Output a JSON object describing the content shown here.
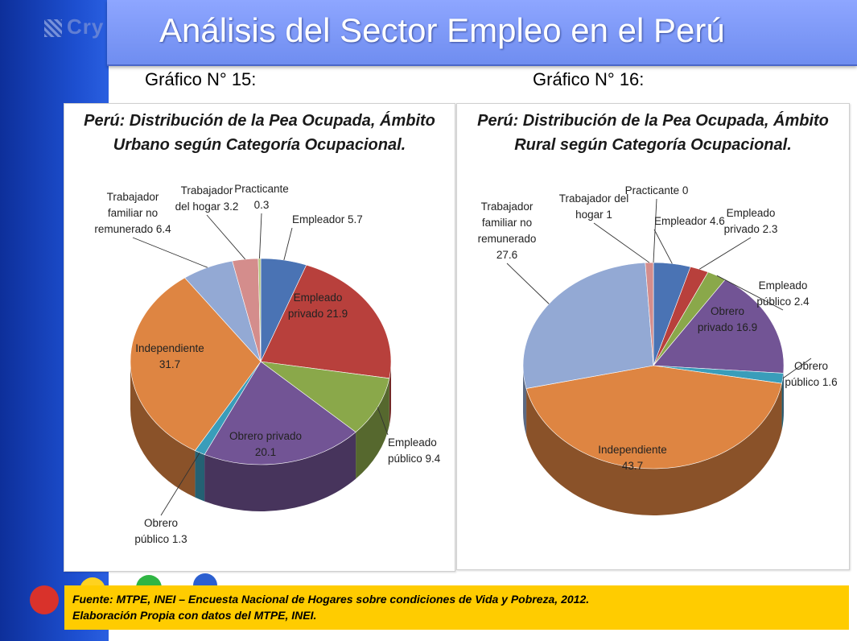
{
  "header": {
    "title": "Análisis del Sector Empleo en el Perú",
    "logo_text": "Cry"
  },
  "chart_labels": {
    "left": "Gráfico N° 15:",
    "right": "Gráfico N° 16:"
  },
  "footer": {
    "line1": "Fuente: MTPE, INEI – Encuesta Nacional de Hogares sobre condiciones de Vida y Pobreza, 2012.",
    "line2": "Elaboración Propia con datos del MTPE, INEI."
  },
  "colors": {
    "empleador": "#4a73b4",
    "empleado_privado": "#b8403c",
    "empleado_publico": "#8aa84a",
    "obrero_privado": "#725495",
    "obrero_publico": "#3a9dba",
    "independiente": "#de8542",
    "trabajador_familiar": "#93a9d4",
    "trabajador_hogar": "#d48d8c",
    "practicante": "#b1c57c"
  },
  "chart_data": [
    {
      "type": "pie",
      "title_line1": "Perú: Distribución de la Pea Ocupada, Ámbito",
      "title_line2": "Urbano según Categoría Ocupacional.",
      "slices": [
        {
          "key": "empleador",
          "label": [
            "Empleador 5.7"
          ],
          "value": 5.7
        },
        {
          "key": "empleado_privado",
          "label": [
            "Empleado",
            "privado 21.9"
          ],
          "value": 21.9
        },
        {
          "key": "empleado_publico",
          "label": [
            "Empleado",
            "público 9.4"
          ],
          "value": 9.4
        },
        {
          "key": "obrero_privado",
          "label": [
            "Obrero privado",
            "20.1"
          ],
          "value": 20.1
        },
        {
          "key": "obrero_publico",
          "label": [
            "Obrero",
            "público 1.3"
          ],
          "value": 1.3
        },
        {
          "key": "independiente",
          "label": [
            "Independiente",
            "31.7"
          ],
          "value": 31.7
        },
        {
          "key": "trabajador_familiar",
          "label": [
            "Trabajador",
            "familiar no",
            "remunerado 6.4"
          ],
          "value": 6.4
        },
        {
          "key": "trabajador_hogar",
          "label": [
            "Trabajador",
            "del hogar 3.2"
          ],
          "value": 3.2
        },
        {
          "key": "practicante",
          "label": [
            "Practicante",
            "0.3"
          ],
          "value": 0.3
        }
      ]
    },
    {
      "type": "pie",
      "title_line1": "Perú: Distribución de la Pea Ocupada, Ámbito",
      "title_line2": "Rural según Categoría Ocupacional.",
      "slices": [
        {
          "key": "empleador",
          "label": [
            "Empleador 4.6"
          ],
          "value": 4.6
        },
        {
          "key": "empleado_privado",
          "label": [
            "Empleado",
            "privado 2.3"
          ],
          "value": 2.3
        },
        {
          "key": "empleado_publico",
          "label": [
            "Empleado",
            "público 2.4"
          ],
          "value": 2.4
        },
        {
          "key": "obrero_privado",
          "label": [
            "Obrero",
            "privado 16.9"
          ],
          "value": 16.9
        },
        {
          "key": "obrero_publico",
          "label": [
            "Obrero",
            "público 1.6"
          ],
          "value": 1.6
        },
        {
          "key": "independiente",
          "label": [
            "Independiente",
            "43.7"
          ],
          "value": 43.7
        },
        {
          "key": "trabajador_familiar",
          "label": [
            "Trabajador",
            "familiar no",
            "remunerado",
            "27.6"
          ],
          "value": 27.6
        },
        {
          "key": "trabajador_hogar",
          "label": [
            "Trabajador del",
            "hogar 1"
          ],
          "value": 1
        },
        {
          "key": "practicante",
          "label": [
            "Practicante 0"
          ],
          "value": 0
        }
      ]
    }
  ]
}
